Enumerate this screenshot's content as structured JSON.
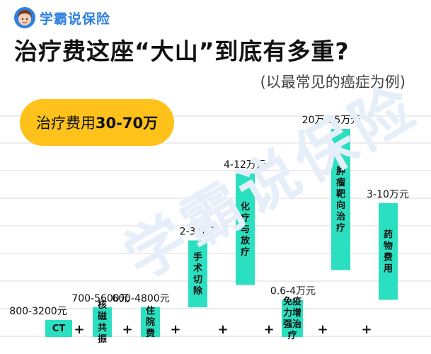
{
  "brand": {
    "name": "学霸说保险",
    "watermark": "学霸说保险"
  },
  "title": "治疗费这座“大山”到底有多重?",
  "subtitle": "(以最常见的癌症为例)",
  "badge": {
    "prefix": "治疗费用",
    "range": "30-70万"
  },
  "colors": {
    "bar": "#2be0c0",
    "badge": "#ffc21a",
    "brand": "#2f7fe0",
    "grid": "#d9d9d9"
  },
  "plus_sign": "+",
  "chart_data": {
    "type": "bar",
    "subtype": "floating-range",
    "y_unit": "relative",
    "grid": true,
    "categories": [
      "CT",
      "核磁共振",
      "住院费",
      "手术切除",
      "化疗与放疗",
      "免疫力增强治疗",
      "肿瘤靶向治疗",
      "药物费用"
    ],
    "values": [
      {
        "label": "800-3200元",
        "low": 0,
        "high": 1
      },
      {
        "label": "700-5600元",
        "low": 0,
        "high": 2
      },
      {
        "label": "600-4800元",
        "low": 0,
        "high": 2
      },
      {
        "label": "2-3万元",
        "low": 2,
        "high": 6.5
      },
      {
        "label": "4-12万元",
        "low": 3.5,
        "high": 11
      },
      {
        "label": "0.6-4万元",
        "low": 0,
        "high": 2.5
      },
      {
        "label": "20万-35万元",
        "low": 4.5,
        "high": 14
      },
      {
        "label": "3-10万元",
        "low": 2.5,
        "high": 9
      }
    ]
  }
}
